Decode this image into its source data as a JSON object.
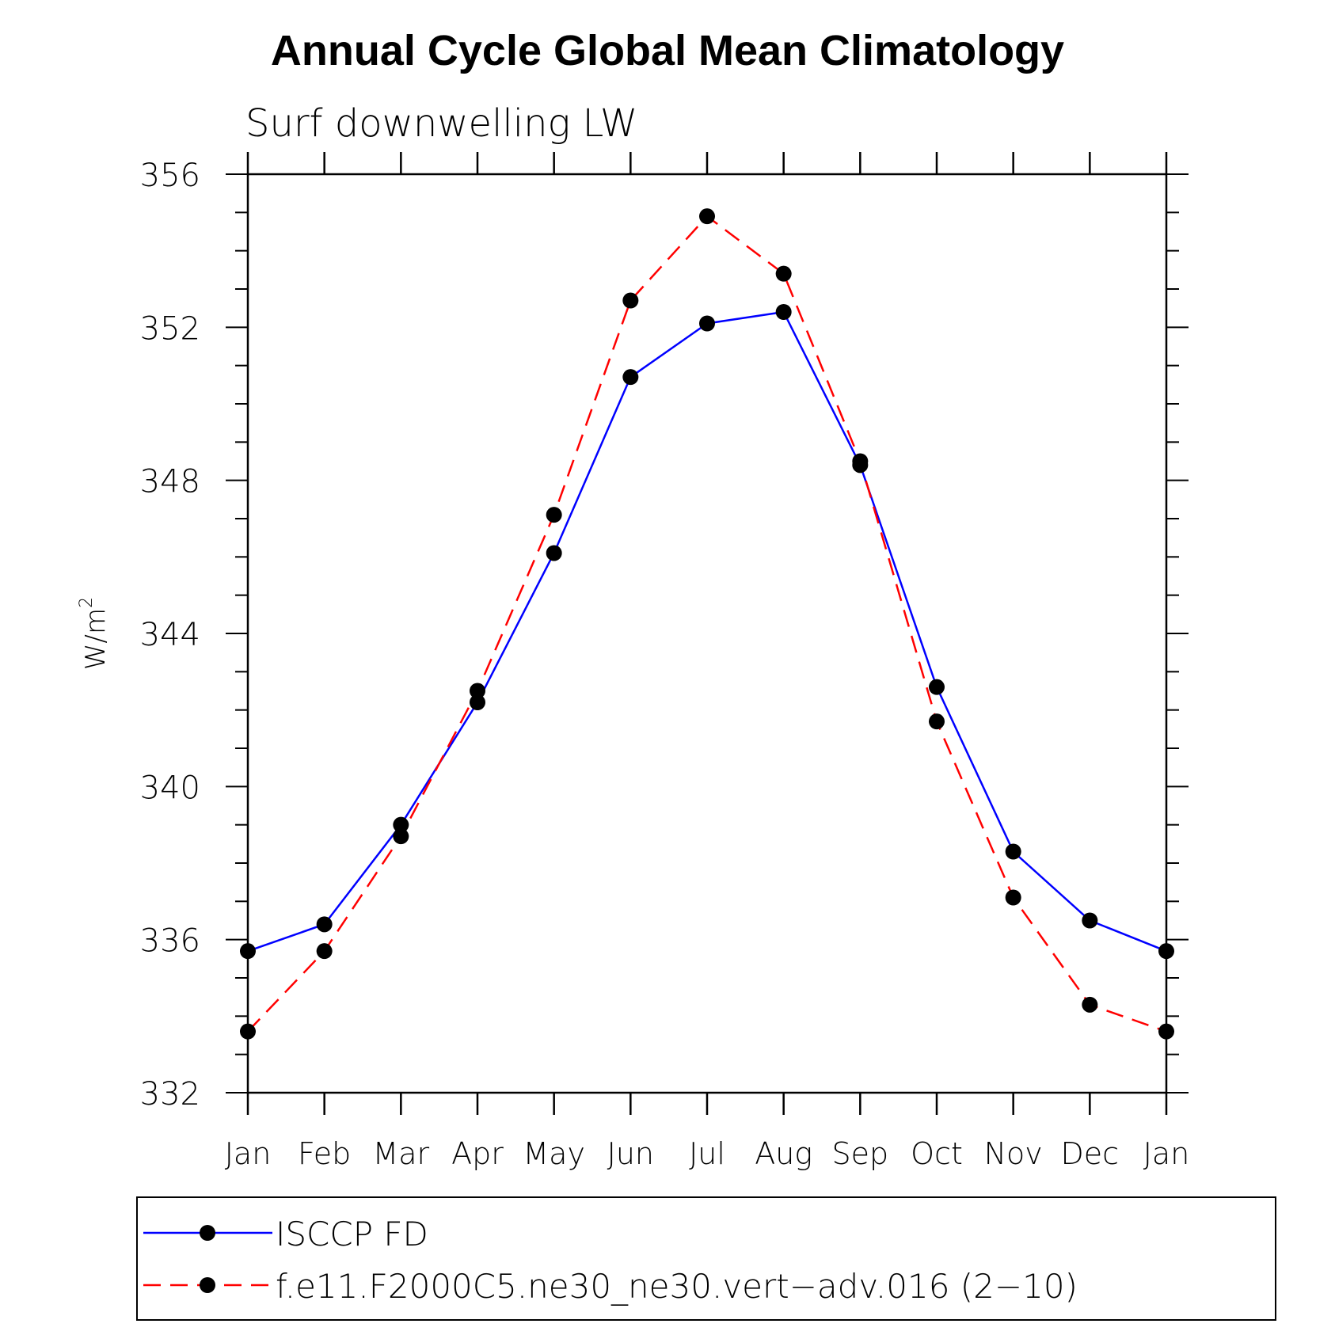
{
  "chart_data": {
    "type": "line",
    "title": "Annual Cycle Global Mean Climatology",
    "subtitle": "Surf downwelling LW",
    "ylabel": "W/m",
    "ylabel_sup": "2",
    "xlabel": "",
    "categories": [
      "Jan",
      "Feb",
      "Mar",
      "Apr",
      "May",
      "Jun",
      "Jul",
      "Aug",
      "Sep",
      "Oct",
      "Nov",
      "Dec",
      "Jan"
    ],
    "ylim": [
      332,
      356
    ],
    "yticks": [
      "332",
      "336",
      "340",
      "344",
      "348",
      "352",
      "356"
    ],
    "grid": false,
    "legend_position": "bottom",
    "series": [
      {
        "name": "ISCCP FD",
        "color": "#0000ff",
        "dash": "solid",
        "marker": "filled-circle",
        "values": [
          335.7,
          336.4,
          339.0,
          342.2,
          346.1,
          350.7,
          352.1,
          352.4,
          348.4,
          342.6,
          338.3,
          336.5,
          335.7
        ]
      },
      {
        "name": "f.e11.F2000C5.ne30_ne30.vert−adv.016 (2−10)",
        "color": "#ff0000",
        "dash": "dashed",
        "marker": "filled-circle",
        "values": [
          333.6,
          335.7,
          338.7,
          342.5,
          347.1,
          352.7,
          354.9,
          353.4,
          348.5,
          341.7,
          337.1,
          334.3,
          333.6
        ]
      }
    ]
  }
}
